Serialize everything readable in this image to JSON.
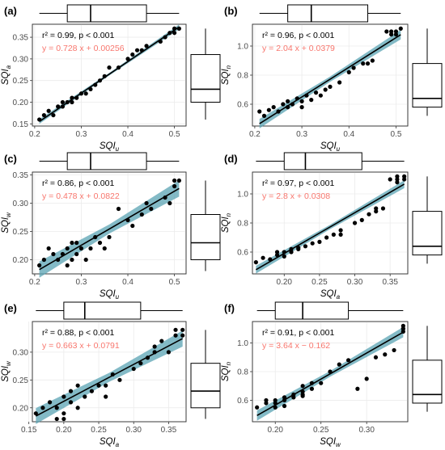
{
  "colors": {
    "regression_line": "#000000",
    "confidence_band": "#5aa3b3",
    "points": "#000000",
    "grid": "#ebebeb",
    "equation_text": "#f8766d",
    "box_stroke": "#000000"
  },
  "chart_data": [
    {
      "type": "scatter",
      "panel": "(a)",
      "xlabel": {
        "main": "SQI",
        "sub": "u"
      },
      "ylabel": {
        "main": "SQI",
        "sub": "a"
      },
      "xlim": [
        0.195,
        0.525
      ],
      "ylim": [
        0.145,
        0.38
      ],
      "xticks": [
        0.2,
        0.3,
        0.4,
        0.5
      ],
      "xtick_labels": [
        "0.2",
        "0.3",
        "0.4",
        "0.5"
      ],
      "yticks": [
        0.15,
        0.2,
        0.25,
        0.3,
        0.35
      ],
      "ytick_labels": [
        "0.15",
        "0.20",
        "0.25",
        "0.30",
        "0.35"
      ],
      "stat": {
        "r2": "r² = 0.99,",
        "p": "p < 0.001"
      },
      "equation": "y = 0.728 x + 0.00256",
      "slope": 0.728,
      "intercept": 0.00256,
      "band": 0.003,
      "x": [
        0.21,
        0.22,
        0.23,
        0.24,
        0.25,
        0.26,
        0.26,
        0.27,
        0.28,
        0.28,
        0.29,
        0.3,
        0.31,
        0.32,
        0.33,
        0.34,
        0.35,
        0.36,
        0.38,
        0.4,
        0.41,
        0.42,
        0.43,
        0.44,
        0.47,
        0.48,
        0.49,
        0.5,
        0.5,
        0.51
      ],
      "y": [
        0.16,
        0.17,
        0.18,
        0.17,
        0.19,
        0.2,
        0.19,
        0.2,
        0.21,
        0.2,
        0.21,
        0.22,
        0.22,
        0.23,
        0.24,
        0.25,
        0.26,
        0.28,
        0.28,
        0.3,
        0.31,
        0.32,
        0.32,
        0.33,
        0.34,
        0.35,
        0.36,
        0.37,
        0.36,
        0.37
      ],
      "top_box": {
        "min": 0.21,
        "q1": 0.27,
        "median": 0.32,
        "q3": 0.44,
        "max": 0.51
      },
      "side_box": {
        "min": 0.16,
        "q1": 0.2,
        "median": 0.23,
        "q3": 0.31,
        "max": 0.37
      }
    },
    {
      "type": "scatter",
      "panel": "(b)",
      "xlabel": {
        "main": "SQI",
        "sub": "u"
      },
      "ylabel": {
        "main": "SQI",
        "sub": "n"
      },
      "xlim": [
        0.195,
        0.525
      ],
      "ylim": [
        0.45,
        1.15
      ],
      "xticks": [
        0.2,
        0.3,
        0.4,
        0.5
      ],
      "xtick_labels": [
        "0.2",
        "0.3",
        "0.4",
        "0.5"
      ],
      "yticks": [
        0.6,
        0.8,
        1.0
      ],
      "ytick_labels": [
        "0.6",
        "0.8",
        "1.0"
      ],
      "stat": {
        "r2": "r² = 0.96,",
        "p": "p < 0.001"
      },
      "equation": "y = 2.04 x + 0.0379",
      "slope": 2.04,
      "intercept": 0.0379,
      "band": 0.018,
      "x": [
        0.21,
        0.22,
        0.23,
        0.24,
        0.25,
        0.26,
        0.27,
        0.27,
        0.28,
        0.29,
        0.3,
        0.3,
        0.31,
        0.32,
        0.33,
        0.34,
        0.35,
        0.36,
        0.38,
        0.4,
        0.41,
        0.43,
        0.44,
        0.45,
        0.48,
        0.49,
        0.49,
        0.5,
        0.5,
        0.51
      ],
      "y": [
        0.55,
        0.52,
        0.56,
        0.58,
        0.55,
        0.6,
        0.58,
        0.62,
        0.6,
        0.64,
        0.62,
        0.58,
        0.66,
        0.63,
        0.68,
        0.66,
        0.7,
        0.72,
        0.75,
        0.82,
        0.85,
        0.88,
        0.88,
        0.9,
        1.1,
        1.1,
        1.08,
        1.1,
        1.08,
        1.12
      ],
      "top_box": {
        "min": 0.21,
        "q1": 0.27,
        "median": 0.32,
        "q3": 0.44,
        "max": 0.51
      },
      "side_box": {
        "min": 0.52,
        "q1": 0.58,
        "median": 0.64,
        "q3": 0.88,
        "max": 1.12
      }
    },
    {
      "type": "scatter",
      "panel": "(c)",
      "xlabel": {
        "main": "SQI",
        "sub": "u"
      },
      "ylabel": {
        "main": "SQI",
        "sub": "w"
      },
      "xlim": [
        0.195,
        0.525
      ],
      "ylim": [
        0.175,
        0.355
      ],
      "xticks": [
        0.2,
        0.3,
        0.4,
        0.5
      ],
      "xtick_labels": [
        "0.2",
        "0.3",
        "0.4",
        "0.5"
      ],
      "yticks": [
        0.2,
        0.25,
        0.3,
        0.35
      ],
      "ytick_labels": [
        "0.20",
        "0.25",
        "0.30",
        "0.35"
      ],
      "stat": {
        "r2": "r² = 0.86,",
        "p": "p < 0.001"
      },
      "equation": "y = 0.478 x + 0.0822",
      "slope": 0.478,
      "intercept": 0.0822,
      "band": 0.008,
      "x": [
        0.21,
        0.22,
        0.23,
        0.24,
        0.25,
        0.26,
        0.27,
        0.27,
        0.28,
        0.28,
        0.29,
        0.29,
        0.3,
        0.31,
        0.32,
        0.33,
        0.34,
        0.35,
        0.36,
        0.38,
        0.4,
        0.41,
        0.43,
        0.44,
        0.45,
        0.48,
        0.49,
        0.5,
        0.5,
        0.51
      ],
      "y": [
        0.19,
        0.2,
        0.22,
        0.21,
        0.2,
        0.21,
        0.22,
        0.19,
        0.2,
        0.23,
        0.21,
        0.23,
        0.22,
        0.2,
        0.22,
        0.24,
        0.23,
        0.22,
        0.24,
        0.29,
        0.27,
        0.26,
        0.28,
        0.3,
        0.29,
        0.31,
        0.3,
        0.34,
        0.33,
        0.34
      ],
      "top_box": {
        "min": 0.21,
        "q1": 0.27,
        "median": 0.32,
        "q3": 0.44,
        "max": 0.51
      },
      "side_box": {
        "min": 0.18,
        "q1": 0.2,
        "median": 0.23,
        "q3": 0.28,
        "max": 0.34
      }
    },
    {
      "type": "scatter",
      "panel": "(d)",
      "xlabel": {
        "main": "SQI",
        "sub": "a"
      },
      "ylabel": {
        "main": "SQI",
        "sub": "n"
      },
      "xlim": [
        0.155,
        0.375
      ],
      "ylim": [
        0.45,
        1.15
      ],
      "xticks": [
        0.2,
        0.25,
        0.3,
        0.35
      ],
      "xtick_labels": [
        "0.20",
        "0.25",
        "0.30",
        "0.35"
      ],
      "yticks": [
        0.6,
        0.8,
        1.0
      ],
      "ytick_labels": [
        "0.6",
        "0.8",
        "1.0"
      ],
      "stat": {
        "r2": "r² = 0.97,",
        "p": "p < 0.001"
      },
      "equation": "y = 2.8 x + 0.0308",
      "slope": 2.8,
      "intercept": 0.0308,
      "band": 0.015,
      "x": [
        0.16,
        0.17,
        0.18,
        0.19,
        0.19,
        0.2,
        0.2,
        0.21,
        0.21,
        0.22,
        0.22,
        0.23,
        0.24,
        0.25,
        0.26,
        0.27,
        0.28,
        0.28,
        0.3,
        0.31,
        0.32,
        0.33,
        0.33,
        0.34,
        0.35,
        0.36,
        0.36,
        0.37,
        0.37,
        0.36
      ],
      "y": [
        0.53,
        0.56,
        0.55,
        0.58,
        0.6,
        0.57,
        0.6,
        0.62,
        0.6,
        0.63,
        0.62,
        0.64,
        0.66,
        0.67,
        0.7,
        0.72,
        0.75,
        0.72,
        0.8,
        0.82,
        0.86,
        0.88,
        0.9,
        0.9,
        1.1,
        1.08,
        1.1,
        1.1,
        1.12,
        1.12
      ],
      "top_box": {
        "min": 0.16,
        "q1": 0.2,
        "median": 0.23,
        "q3": 0.31,
        "max": 0.37
      },
      "side_box": {
        "min": 0.52,
        "q1": 0.58,
        "median": 0.64,
        "q3": 0.88,
        "max": 1.12
      }
    },
    {
      "type": "scatter",
      "panel": "(e)",
      "xlabel": {
        "main": "SQI",
        "sub": "a"
      },
      "ylabel": {
        "main": "SQI",
        "sub": "w"
      },
      "xlim": [
        0.155,
        0.375
      ],
      "ylim": [
        0.175,
        0.355
      ],
      "xticks": [
        0.15,
        0.2,
        0.25,
        0.3,
        0.35
      ],
      "xtick_labels": [
        "0.15",
        "0.20",
        "0.25",
        "0.30",
        "0.35"
      ],
      "yticks": [
        0.2,
        0.25,
        0.3
      ],
      "ytick_labels": [
        "0.20",
        "0.25",
        "0.30"
      ],
      "stat": {
        "r2": "r² = 0.88,",
        "p": "p < 0.001"
      },
      "equation": "y = 0.663 x + 0.0791",
      "slope": 0.663,
      "intercept": 0.0791,
      "band": 0.008,
      "x": [
        0.16,
        0.17,
        0.18,
        0.19,
        0.19,
        0.2,
        0.2,
        0.21,
        0.21,
        0.22,
        0.22,
        0.23,
        0.24,
        0.25,
        0.26,
        0.26,
        0.27,
        0.28,
        0.3,
        0.31,
        0.32,
        0.33,
        0.33,
        0.34,
        0.35,
        0.36,
        0.36,
        0.37,
        0.37,
        0.2
      ],
      "y": [
        0.19,
        0.2,
        0.21,
        0.2,
        0.18,
        0.19,
        0.22,
        0.21,
        0.23,
        0.2,
        0.24,
        0.22,
        0.23,
        0.24,
        0.22,
        0.24,
        0.26,
        0.25,
        0.27,
        0.28,
        0.29,
        0.3,
        0.31,
        0.32,
        0.3,
        0.33,
        0.34,
        0.33,
        0.34,
        0.18
      ],
      "top_box": {
        "min": 0.16,
        "q1": 0.2,
        "median": 0.23,
        "q3": 0.31,
        "max": 0.37
      },
      "side_box": {
        "min": 0.18,
        "q1": 0.2,
        "median": 0.23,
        "q3": 0.28,
        "max": 0.34
      }
    },
    {
      "type": "scatter",
      "panel": "(f)",
      "xlabel": {
        "main": "SQI",
        "sub": "w"
      },
      "ylabel": {
        "main": "SQI",
        "sub": "n"
      },
      "xlim": [
        0.175,
        0.345
      ],
      "ylim": [
        0.45,
        1.15
      ],
      "xticks": [
        0.2,
        0.25,
        0.3
      ],
      "xtick_labels": [
        "0.20",
        "0.25",
        "0.30"
      ],
      "yticks": [
        0.6,
        0.8,
        1.0
      ],
      "ytick_labels": [
        "0.6",
        "0.8",
        "1.0"
      ],
      "stat": {
        "r2": "r² = 0.91,",
        "p": "p < 0.001"
      },
      "equation": "y = 3.64 x − 0.162",
      "slope": 3.64,
      "intercept": -0.162,
      "band": 0.02,
      "x": [
        0.18,
        0.19,
        0.19,
        0.2,
        0.2,
        0.2,
        0.21,
        0.21,
        0.22,
        0.22,
        0.23,
        0.23,
        0.23,
        0.24,
        0.24,
        0.25,
        0.26,
        0.27,
        0.28,
        0.29,
        0.3,
        0.31,
        0.32,
        0.33,
        0.34,
        0.34,
        0.34,
        0.34,
        0.21,
        0.23
      ],
      "y": [
        0.55,
        0.58,
        0.6,
        0.55,
        0.6,
        0.58,
        0.62,
        0.6,
        0.64,
        0.62,
        0.66,
        0.7,
        0.63,
        0.68,
        0.72,
        0.72,
        0.8,
        0.85,
        0.88,
        0.68,
        0.75,
        0.9,
        0.92,
        0.95,
        1.08,
        1.1,
        1.12,
        1.1,
        0.56,
        0.64
      ],
      "top_box": {
        "min": 0.18,
        "q1": 0.2,
        "median": 0.23,
        "q3": 0.28,
        "max": 0.34
      },
      "side_box": {
        "min": 0.52,
        "q1": 0.58,
        "median": 0.64,
        "q3": 0.88,
        "max": 1.12
      }
    }
  ]
}
